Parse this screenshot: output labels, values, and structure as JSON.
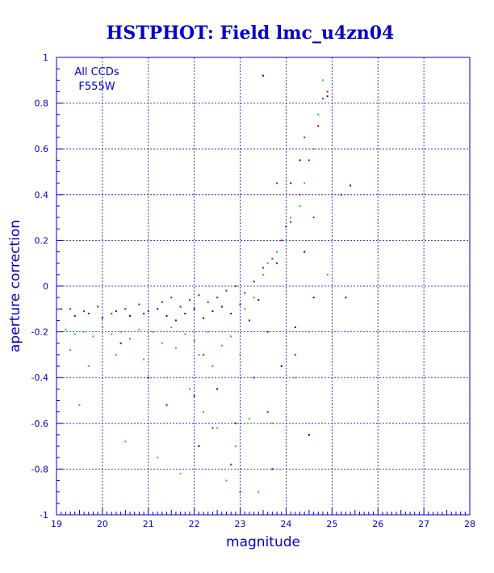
{
  "chart_data": {
    "type": "scatter",
    "title": "HSTPHOT: Field lmc_u4zn04",
    "xlabel": "magnitude",
    "ylabel": "aperture correction",
    "annotation_lines": [
      "All CCDs",
      "F555W"
    ],
    "xlim": [
      19,
      28
    ],
    "ylim": [
      -1,
      1
    ],
    "x_ticks": [
      19,
      20,
      21,
      22,
      23,
      24,
      25,
      26,
      27,
      28
    ],
    "y_ticks": [
      -1,
      -0.8,
      -0.6,
      -0.4,
      -0.2,
      0,
      0.2,
      0.4,
      0.6,
      0.8,
      1
    ],
    "x_tick_labels": [
      "19",
      "20",
      "21",
      "22",
      "23",
      "24",
      "25",
      "26",
      "27",
      "28"
    ],
    "y_tick_labels": [
      "-1",
      "-0.8",
      "-0.6",
      "-0.4",
      "-0.2",
      "0",
      "0.2",
      "0.4",
      "0.6",
      "0.8",
      "1"
    ],
    "grid": true,
    "colors": {
      "axes": "#0000cc",
      "grid": "#0000cc",
      "title": "#0000cc",
      "background": "#ffffff",
      "red_points": "#cc0000",
      "blue_points": "#0000cc",
      "green_points": "#00dd00"
    },
    "series": [
      {
        "color": "#00dd00",
        "points": [
          [
            19.2,
            -0.19
          ],
          [
            19.4,
            -0.21
          ],
          [
            19.6,
            -0.2
          ],
          [
            19.8,
            -0.22
          ],
          [
            20.0,
            -0.18
          ],
          [
            20.2,
            -0.21
          ],
          [
            20.4,
            -0.2
          ],
          [
            20.6,
            -0.23
          ],
          [
            20.8,
            -0.19
          ],
          [
            21.0,
            -0.22
          ],
          [
            21.1,
            -0.2
          ],
          [
            21.3,
            -0.25
          ],
          [
            21.5,
            -0.18
          ],
          [
            21.6,
            -0.27
          ],
          [
            21.8,
            -0.21
          ],
          [
            22.0,
            -0.24
          ],
          [
            22.1,
            -0.3
          ],
          [
            22.3,
            -0.2
          ],
          [
            22.4,
            -0.35
          ],
          [
            22.6,
            -0.26
          ],
          [
            22.8,
            -0.22
          ],
          [
            23.0,
            -0.3
          ],
          [
            23.1,
            -0.1
          ],
          [
            23.3,
            -0.05
          ],
          [
            23.5,
            0.05
          ],
          [
            23.6,
            0.1
          ],
          [
            23.8,
            0.15
          ],
          [
            24.0,
            0.2
          ],
          [
            24.1,
            0.3
          ],
          [
            24.3,
            0.35
          ],
          [
            24.4,
            0.45
          ],
          [
            24.6,
            0.6
          ],
          [
            24.7,
            0.75
          ],
          [
            24.8,
            0.9
          ],
          [
            24.9,
            0.05
          ],
          [
            19.3,
            -0.28
          ],
          [
            19.7,
            -0.35
          ],
          [
            20.3,
            -0.3
          ],
          [
            20.9,
            -0.32
          ],
          [
            21.4,
            -0.4
          ],
          [
            21.9,
            -0.45
          ],
          [
            22.2,
            -0.55
          ],
          [
            22.5,
            -0.62
          ],
          [
            22.9,
            -0.7
          ],
          [
            23.2,
            -0.58
          ],
          [
            23.7,
            -0.6
          ],
          [
            24.2,
            -0.4
          ],
          [
            19.5,
            -0.52
          ],
          [
            20.5,
            -0.68
          ],
          [
            21.2,
            -0.75
          ],
          [
            21.7,
            -0.82
          ],
          [
            22.7,
            -0.85
          ],
          [
            23.4,
            -0.9
          ],
          [
            24.5,
            -0.2
          ]
        ]
      },
      {
        "color": "#cc0000",
        "points": [
          [
            19.3,
            -0.1
          ],
          [
            19.6,
            -0.11
          ],
          [
            19.9,
            -0.09
          ],
          [
            20.2,
            -0.12
          ],
          [
            20.5,
            -0.1
          ],
          [
            20.8,
            -0.08
          ],
          [
            21.0,
            -0.11
          ],
          [
            21.3,
            -0.07
          ],
          [
            21.5,
            -0.05
          ],
          [
            21.7,
            -0.09
          ],
          [
            21.9,
            -0.06
          ],
          [
            22.1,
            -0.04
          ],
          [
            22.3,
            -0.07
          ],
          [
            22.5,
            -0.05
          ],
          [
            22.7,
            -0.02
          ],
          [
            22.9,
            0.0
          ],
          [
            23.1,
            -0.03
          ],
          [
            23.3,
            0.02
          ],
          [
            23.5,
            0.08
          ],
          [
            23.7,
            0.12
          ],
          [
            23.9,
            0.2
          ],
          [
            24.1,
            0.28
          ],
          [
            24.3,
            0.4
          ],
          [
            24.5,
            0.55
          ],
          [
            24.7,
            0.7
          ],
          [
            24.9,
            0.85
          ],
          [
            24.8,
            0.82
          ],
          [
            22.0,
            -0.48
          ],
          [
            22.4,
            -0.62
          ],
          [
            22.8,
            -0.78
          ],
          [
            23.0,
            -0.9
          ],
          [
            23.6,
            -0.55
          ],
          [
            24.2,
            -0.3
          ],
          [
            21.4,
            -0.52
          ],
          [
            24.6,
            0.3
          ],
          [
            23.8,
            0.45
          ],
          [
            24.4,
            0.65
          ],
          [
            22.2,
            -0.3
          ]
        ]
      },
      {
        "color": "#0000cc",
        "points": [
          [
            19.1,
            -0.1
          ],
          [
            19.4,
            -0.13
          ],
          [
            19.7,
            -0.12
          ],
          [
            20.0,
            -0.14
          ],
          [
            20.3,
            -0.11
          ],
          [
            20.6,
            -0.13
          ],
          [
            20.9,
            -0.12
          ],
          [
            21.2,
            -0.1
          ],
          [
            21.4,
            -0.13
          ],
          [
            21.6,
            -0.15
          ],
          [
            21.8,
            -0.12
          ],
          [
            22.0,
            -0.1
          ],
          [
            22.2,
            -0.14
          ],
          [
            22.4,
            -0.11
          ],
          [
            22.6,
            -0.09
          ],
          [
            22.8,
            -0.12
          ],
          [
            23.0,
            -0.08
          ],
          [
            23.2,
            -0.15
          ],
          [
            23.4,
            -0.06
          ],
          [
            23.6,
            -0.2
          ],
          [
            23.8,
            0.1
          ],
          [
            24.0,
            0.26
          ],
          [
            24.2,
            -0.18
          ],
          [
            24.4,
            0.15
          ],
          [
            24.6,
            -0.05
          ],
          [
            25.2,
            0.4
          ],
          [
            25.4,
            0.44
          ],
          [
            25.3,
            -0.05
          ],
          [
            23.5,
            0.92
          ],
          [
            24.1,
            0.45
          ],
          [
            24.3,
            0.55
          ],
          [
            24.9,
            0.83
          ],
          [
            22.5,
            -0.45
          ],
          [
            23.3,
            -0.4
          ],
          [
            23.9,
            -0.35
          ],
          [
            21.0,
            -0.4
          ],
          [
            22.9,
            -0.6
          ],
          [
            24.5,
            -0.65
          ],
          [
            20.4,
            -0.25
          ],
          [
            22.1,
            -0.7
          ],
          [
            23.7,
            -0.8
          ]
        ]
      }
    ]
  }
}
